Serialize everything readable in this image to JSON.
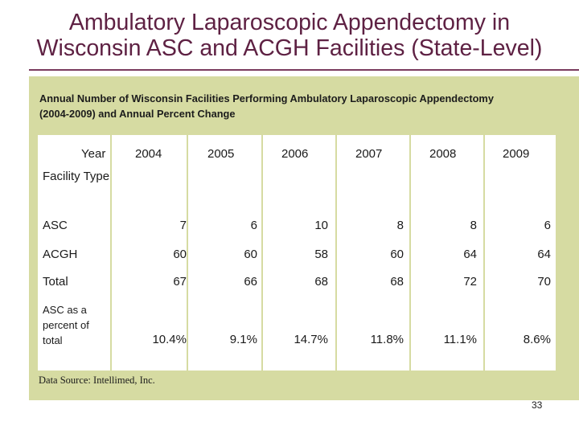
{
  "slide": {
    "title_line1": "Ambulatory Laparoscopic Appendectomy in",
    "title_line2": "Wisconsin ASC and ACGH Facilities (State-Level)",
    "subtitle_line1": "Annual Number of Wisconsin Facilities Performing Ambulatory Laparoscopic Appendectomy",
    "subtitle_line2": "(2004-2009) and Annual Percent Change",
    "source": "Data Source: Intellimed, Inc.",
    "page_number": "33"
  },
  "table": {
    "year_header": "Year",
    "facility_header": "Facility Type",
    "years": [
      "2004",
      "2005",
      "2006",
      "2007",
      "2008",
      "2009"
    ],
    "rows": [
      {
        "label": "ASC",
        "values": [
          "7",
          "6",
          "10",
          "8",
          "8",
          "6"
        ]
      },
      {
        "label": "ACGH",
        "values": [
          "60",
          "60",
          "58",
          "60",
          "64",
          "64"
        ]
      },
      {
        "label": "Total",
        "values": [
          "67",
          "66",
          "68",
          "68",
          "72",
          "70"
        ]
      },
      {
        "label": "ASC as a percent of total",
        "values": [
          "10.4%",
          "9.1%",
          "14.7%",
          "11.8%",
          "11.1%",
          "8.6%"
        ]
      }
    ]
  },
  "colors": {
    "title": "#5e2143",
    "panel": "#d6dba2",
    "rule": "#7a3b5e"
  }
}
